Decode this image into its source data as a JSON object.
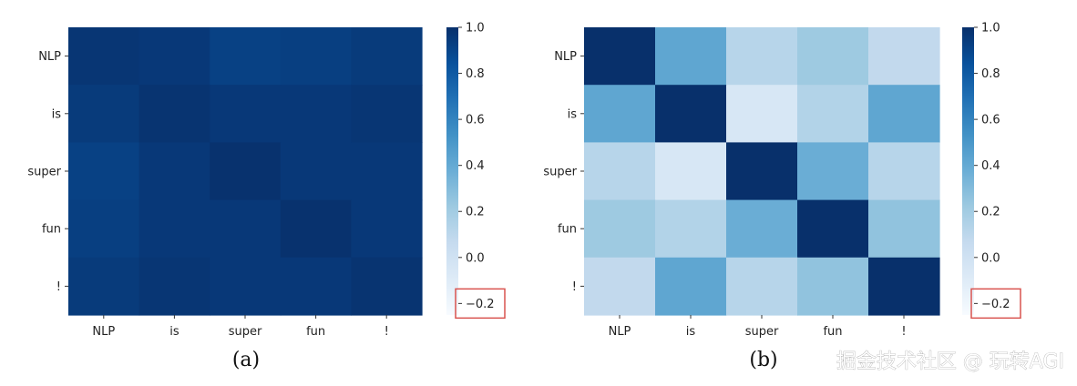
{
  "chart_data": [
    {
      "type": "heatmap",
      "caption": "(a)",
      "x_categories": [
        "NLP",
        "is",
        "super",
        "fun",
        "!"
      ],
      "y_categories": [
        "NLP",
        "is",
        "super",
        "fun",
        "!"
      ],
      "values": [
        [
          0.97,
          0.96,
          0.92,
          0.93,
          0.95
        ],
        [
          0.95,
          0.98,
          0.96,
          0.96,
          0.97
        ],
        [
          0.92,
          0.96,
          0.99,
          0.96,
          0.96
        ],
        [
          0.93,
          0.96,
          0.96,
          0.99,
          0.96
        ],
        [
          0.95,
          0.97,
          0.96,
          0.96,
          0.98
        ]
      ],
      "colormap": "Blues",
      "colorbar": {
        "range": [
          -0.25,
          1.0
        ],
        "ticks": [
          1.0,
          0.8,
          0.6,
          0.4,
          0.2,
          0.0,
          -0.2
        ],
        "tick_labels": [
          "1.0",
          "0.8",
          "0.6",
          "0.4",
          "0.2",
          "0.0",
          "−0.2"
        ],
        "highlighted_tick": "−0.2",
        "highlight_color": "#d9534f"
      }
    },
    {
      "type": "heatmap",
      "caption": "(b)",
      "x_categories": [
        "NLP",
        "is",
        "super",
        "fun",
        "!"
      ],
      "y_categories": [
        "NLP",
        "is",
        "super",
        "fun",
        "!"
      ],
      "values": [
        [
          1.0,
          0.42,
          0.12,
          0.22,
          0.08
        ],
        [
          0.42,
          1.0,
          -0.05,
          0.14,
          0.42
        ],
        [
          0.12,
          -0.05,
          1.0,
          0.38,
          0.12
        ],
        [
          0.22,
          0.14,
          0.38,
          1.0,
          0.26
        ],
        [
          0.08,
          0.42,
          0.12,
          0.26,
          1.0
        ]
      ],
      "colormap": "Blues",
      "colorbar": {
        "range": [
          -0.25,
          1.0
        ],
        "ticks": [
          1.0,
          0.8,
          0.6,
          0.4,
          0.2,
          0.0,
          -0.2
        ],
        "tick_labels": [
          "1.0",
          "0.8",
          "0.6",
          "0.4",
          "0.2",
          "0.0",
          "−0.2"
        ],
        "highlighted_tick": "−0.2",
        "highlight_color": "#d9534f"
      }
    }
  ],
  "watermark": {
    "text": "掘金技术社区 @ 玩转AGI"
  }
}
